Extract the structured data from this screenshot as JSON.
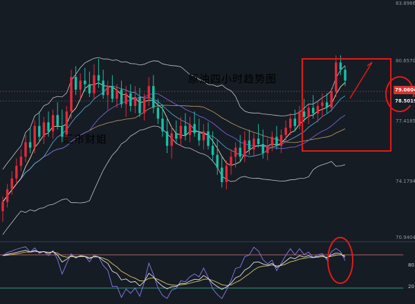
{
  "colors": {
    "background": "#161c24",
    "up_candle": "#e8283c",
    "down_candle": "#16c2a8",
    "bollinger": "#c7c9cf",
    "ma_fast": "#e8e2b8",
    "ma_slow": "#7e64d8",
    "ma_long": "#c9a06a",
    "annotation_red": "#e31b1b",
    "osc_k": "#e9e9e9",
    "osc_d": "#8a7ef0",
    "osc_j": "#e0c86a"
  },
  "captions": {
    "title": "原油四小时趋势图",
    "watermark": "汇市财姐"
  },
  "badges": {
    "price_last": "79.0604",
    "price_prev": "78.5019"
  },
  "chart_data": {
    "type": "candlestick",
    "title": "原油四小时趋势图",
    "price_axis": {
      "ticks": [
        "83.8966",
        "80.6570",
        "77.4185",
        "74.1794",
        "70.9404"
      ],
      "ylim": [
        70.9404,
        83.8966
      ],
      "side": "right"
    },
    "indicators": [
      "bollinger_bands",
      "moving_averages"
    ],
    "oscillator": {
      "type": "stochastic",
      "levels": [
        "80",
        "20"
      ],
      "ylim": [
        0,
        100
      ]
    },
    "candles": [
      [
        72.4,
        73.2,
        71.8,
        72.9
      ],
      [
        72.9,
        73.9,
        72.6,
        73.6
      ],
      [
        73.6,
        74.6,
        73.3,
        74.2
      ],
      [
        74.2,
        75.3,
        73.9,
        74.9
      ],
      [
        74.9,
        75.8,
        74.6,
        75.4
      ],
      [
        75.4,
        76.6,
        75.1,
        76.2
      ],
      [
        76.2,
        77.0,
        75.6,
        75.9
      ],
      [
        75.9,
        77.4,
        75.6,
        77.1
      ],
      [
        77.1,
        77.9,
        76.2,
        76.5
      ],
      [
        76.5,
        77.6,
        76.1,
        77.3
      ],
      [
        77.3,
        77.9,
        76.5,
        76.8
      ],
      [
        76.8,
        78.0,
        76.4,
        77.7
      ],
      [
        77.7,
        78.4,
        76.9,
        77.1
      ],
      [
        77.1,
        78.0,
        76.2,
        76.5
      ],
      [
        76.5,
        78.2,
        76.2,
        77.9
      ],
      [
        77.9,
        80.2,
        77.5,
        79.8
      ],
      [
        79.8,
        80.4,
        78.8,
        79.1
      ],
      [
        79.1,
        80.0,
        78.6,
        79.6
      ],
      [
        79.6,
        80.3,
        79.0,
        79.4
      ],
      [
        79.4,
        80.1,
        78.7,
        78.9
      ],
      [
        78.9,
        80.5,
        78.6,
        79.9
      ],
      [
        79.9,
        80.8,
        79.2,
        79.6
      ],
      [
        79.6,
        80.2,
        78.6,
        78.8
      ],
      [
        78.8,
        79.6,
        78.0,
        79.3
      ],
      [
        79.3,
        79.9,
        78.4,
        78.6
      ],
      [
        78.6,
        79.4,
        78.1,
        79.1
      ],
      [
        79.1,
        79.6,
        78.1,
        78.3
      ],
      [
        78.3,
        79.3,
        77.6,
        78.9
      ],
      [
        78.9,
        79.4,
        77.9,
        78.2
      ],
      [
        78.2,
        79.3,
        77.8,
        78.7
      ],
      [
        78.7,
        79.2,
        77.6,
        77.8
      ],
      [
        77.8,
        78.9,
        77.4,
        78.6
      ],
      [
        78.6,
        79.8,
        78.2,
        79.3
      ],
      [
        79.3,
        79.9,
        77.8,
        78.1
      ],
      [
        78.1,
        78.6,
        77.2,
        77.5
      ],
      [
        77.5,
        78.3,
        76.5,
        76.8
      ],
      [
        76.8,
        77.6,
        75.6,
        76.0
      ],
      [
        76.0,
        77.1,
        75.3,
        76.7
      ],
      [
        76.7,
        77.4,
        76.1,
        76.4
      ],
      [
        76.4,
        77.6,
        76.0,
        77.1
      ],
      [
        77.1,
        77.8,
        76.3,
        76.6
      ],
      [
        76.6,
        77.6,
        76.2,
        77.2
      ],
      [
        77.2,
        77.9,
        76.5,
        76.7
      ],
      [
        76.7,
        77.5,
        76.0,
        76.3
      ],
      [
        76.3,
        77.2,
        75.8,
        76.8
      ],
      [
        76.8,
        77.3,
        75.8,
        76.0
      ],
      [
        76.0,
        76.8,
        75.2,
        75.5
      ],
      [
        75.5,
        76.3,
        74.4,
        74.8
      ],
      [
        74.8,
        75.4,
        73.7,
        74.0
      ],
      [
        74.0,
        75.2,
        73.6,
        74.9
      ],
      [
        74.9,
        75.8,
        74.4,
        75.4
      ],
      [
        75.4,
        76.2,
        74.8,
        75.9
      ],
      [
        75.9,
        76.6,
        75.1,
        75.4
      ],
      [
        75.4,
        76.8,
        75.1,
        76.3
      ],
      [
        76.3,
        76.9,
        75.5,
        75.8
      ],
      [
        75.8,
        76.7,
        75.4,
        76.4
      ],
      [
        76.4,
        77.2,
        75.9,
        76.1
      ],
      [
        76.1,
        76.9,
        75.3,
        75.6
      ],
      [
        75.6,
        76.4,
        75.2,
        76.0
      ],
      [
        76.0,
        76.8,
        75.7,
        76.5
      ],
      [
        76.5,
        77.1,
        75.8,
        76.0
      ],
      [
        76.0,
        76.9,
        75.6,
        76.6
      ],
      [
        76.6,
        77.4,
        76.2,
        77.0
      ],
      [
        77.0,
        77.8,
        76.6,
        77.5
      ],
      [
        77.5,
        78.0,
        76.8,
        77.1
      ],
      [
        77.1,
        78.2,
        76.9,
        77.9
      ],
      [
        77.9,
        78.6,
        77.3,
        77.6
      ],
      [
        77.6,
        78.3,
        77.2,
        78.1
      ],
      [
        78.1,
        78.8,
        77.5,
        77.8
      ],
      [
        77.8,
        78.5,
        77.3,
        78.2
      ],
      [
        78.2,
        78.9,
        77.6,
        78.4
      ],
      [
        78.4,
        78.9,
        77.8,
        78.1
      ],
      [
        78.1,
        79.2,
        77.9,
        79.0
      ],
      [
        79.0,
        81.0,
        78.7,
        80.6
      ],
      [
        80.6,
        81.0,
        79.9,
        80.2
      ],
      [
        80.2,
        80.4,
        79.3,
        79.6
      ]
    ]
  }
}
